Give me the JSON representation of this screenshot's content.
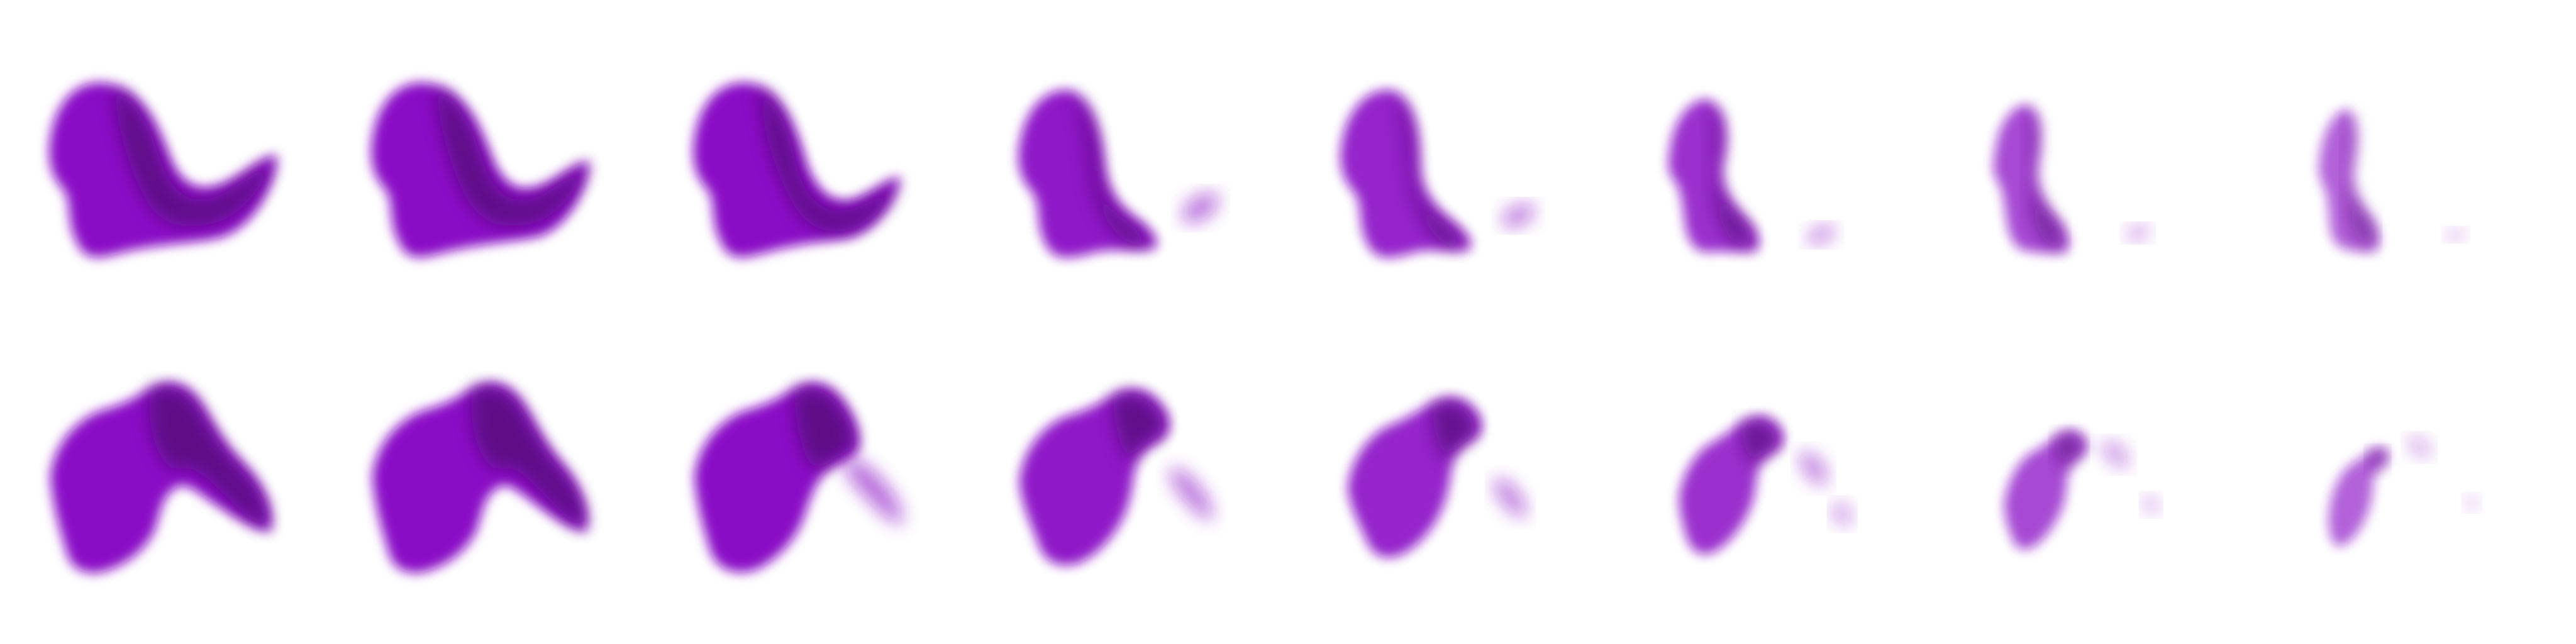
{
  "sheet": {
    "type": "sprite-sheet",
    "rows": 2,
    "columns": 8,
    "colors": {
      "body": "#8a0ec6",
      "shadow": "#5a0a80",
      "background": "#ffffff"
    },
    "sprites": [
      {
        "row": 1,
        "frame": 1,
        "name": "row1-frame-1"
      },
      {
        "row": 1,
        "frame": 2,
        "name": "row1-frame-2"
      },
      {
        "row": 1,
        "frame": 3,
        "name": "row1-frame-3"
      },
      {
        "row": 1,
        "frame": 4,
        "name": "row1-frame-4"
      },
      {
        "row": 1,
        "frame": 5,
        "name": "row1-frame-5"
      },
      {
        "row": 1,
        "frame": 6,
        "name": "row1-frame-6"
      },
      {
        "row": 1,
        "frame": 7,
        "name": "row1-frame-7"
      },
      {
        "row": 1,
        "frame": 8,
        "name": "row1-frame-8"
      },
      {
        "row": 2,
        "frame": 1,
        "name": "row2-frame-1"
      },
      {
        "row": 2,
        "frame": 2,
        "name": "row2-frame-2"
      },
      {
        "row": 2,
        "frame": 3,
        "name": "row2-frame-3"
      },
      {
        "row": 2,
        "frame": 4,
        "name": "row2-frame-4"
      },
      {
        "row": 2,
        "frame": 5,
        "name": "row2-frame-5"
      },
      {
        "row": 2,
        "frame": 6,
        "name": "row2-frame-6"
      },
      {
        "row": 2,
        "frame": 7,
        "name": "row2-frame-7"
      },
      {
        "row": 2,
        "frame": 8,
        "name": "row2-frame-8"
      }
    ]
  }
}
